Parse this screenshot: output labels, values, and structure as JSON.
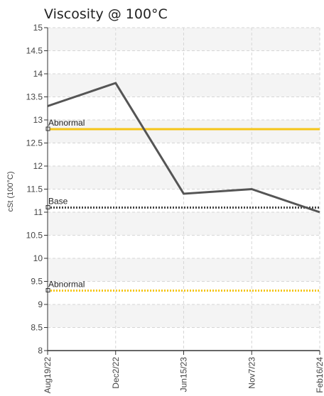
{
  "chart_data": {
    "type": "line",
    "title": "Viscosity @ 100°C",
    "xlabel": "",
    "ylabel": "cSt (100°C)",
    "categories": [
      "Aug19/22",
      "Dec2/22",
      "Jun15/23",
      "Nov7/23",
      "Feb16/24"
    ],
    "series": [
      {
        "name": "",
        "values": [
          13.3,
          13.8,
          11.4,
          11.5,
          11.0
        ],
        "color": "#555555"
      }
    ],
    "reference_lines": [
      {
        "label": "Abnormal",
        "value": 12.8,
        "color": "#f5c518",
        "style": "solid"
      },
      {
        "label": "Base",
        "value": 11.1,
        "color": "#444444",
        "style": "dotted"
      },
      {
        "label": "Abnormal",
        "value": 9.3,
        "color": "#f5c518",
        "style": "dotted"
      }
    ],
    "ylim": [
      8,
      15
    ],
    "yticks": [
      "8",
      "8.5",
      "9",
      "9.5",
      "10",
      "10.5",
      "11",
      "11.5",
      "12",
      "12.5",
      "13",
      "13.5",
      "14",
      "14.5",
      "15"
    ],
    "grid": true,
    "legend": "none"
  }
}
